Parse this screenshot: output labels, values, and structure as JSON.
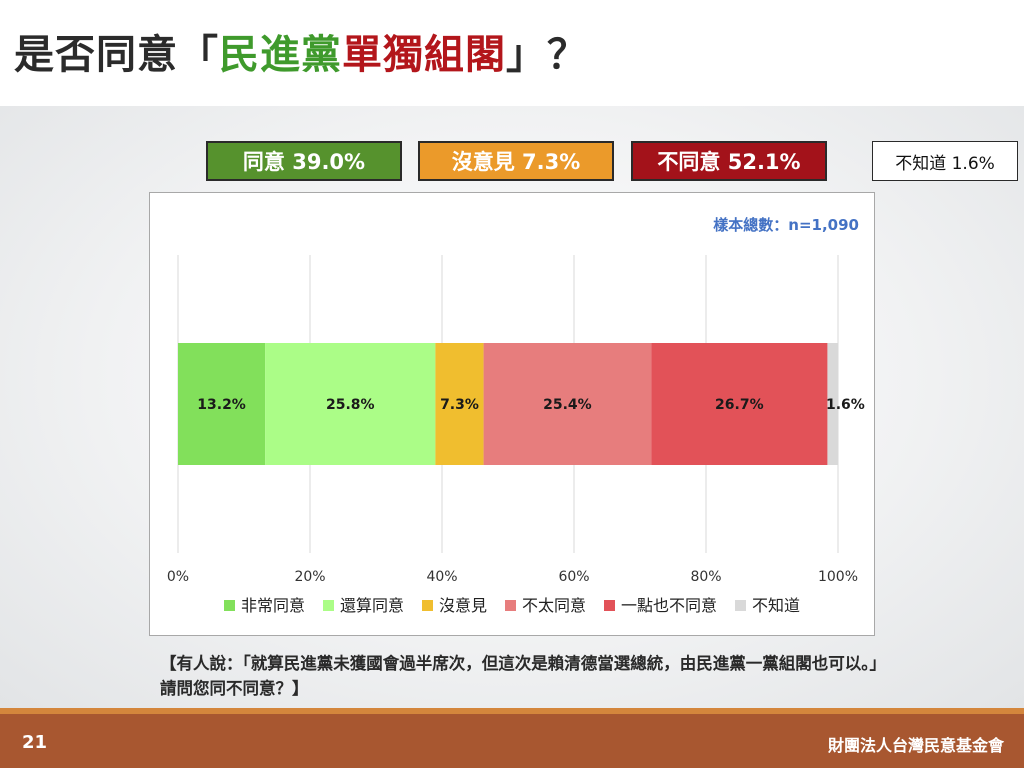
{
  "header": {
    "title_prefix": "是否同意「",
    "title_green": "民進黨",
    "title_red": "單獨組閣",
    "title_suffix": "」？"
  },
  "summary": {
    "agree": "同意 39.0%",
    "neutral": "沒意見 7.3%",
    "disagree": "不同意 52.1%",
    "unknown": "不知道 1.6%"
  },
  "sample_size": "樣本總數：n=1,090",
  "footnote": "【有人說：「就算民進黨未獲國會過半席次，但這次是賴清德當選總統，由民進黨一黨組閣也可以。」請問您同不同意？】",
  "footer": {
    "page_number": "21",
    "organization": "財團法人台灣民意基金會"
  },
  "chart_data": {
    "type": "bar",
    "orientation": "horizontal-stacked-100",
    "xlim": [
      0,
      100
    ],
    "x_ticks": [
      "0%",
      "20%",
      "40%",
      "60%",
      "80%",
      "100%"
    ],
    "x_tick_values": [
      0,
      20,
      40,
      60,
      80,
      100
    ],
    "grid": true,
    "legend_position": "bottom",
    "series": [
      {
        "name": "非常同意",
        "value": 13.2,
        "label": "13.2%",
        "color": "#82e05b"
      },
      {
        "name": "還算同意",
        "value": 25.8,
        "label": "25.8%",
        "color": "#abfd87"
      },
      {
        "name": "沒意見",
        "value": 7.3,
        "label": "7.3%",
        "color": "#f0be2f"
      },
      {
        "name": "不太同意",
        "value": 25.4,
        "label": "25.4%",
        "color": "#e77d7d"
      },
      {
        "name": "一點也不同意",
        "value": 26.7,
        "label": "26.7%",
        "color": "#e25258"
      },
      {
        "name": "不知道",
        "value": 1.6,
        "label": "1.6%",
        "color": "#d9d9d9"
      }
    ]
  }
}
